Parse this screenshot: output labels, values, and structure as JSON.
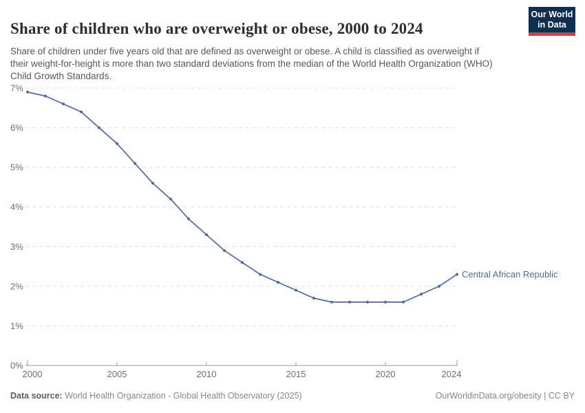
{
  "header": {
    "title": "Share of children who are overweight or obese, 2000 to 2024",
    "subtitle": "Share of children under five years old that are defined as overweight or obese. A child is classified as overweight if their weight-for-height is more than two standard deviations from the median of the World Health Organization (WHO) Child Growth Standards.",
    "logo": {
      "line1": "Our World",
      "line2": "in Data"
    }
  },
  "chart_data": {
    "type": "line",
    "title": "Share of children who are overweight or obese, 2000 to 2024",
    "xlabel": "",
    "ylabel": "",
    "unit": "%",
    "x": [
      2000,
      2001,
      2002,
      2003,
      2004,
      2005,
      2006,
      2007,
      2008,
      2009,
      2010,
      2011,
      2012,
      2013,
      2014,
      2015,
      2016,
      2017,
      2018,
      2019,
      2020,
      2021,
      2022,
      2023,
      2024
    ],
    "series": [
      {
        "name": "Central African Republic",
        "color": "#4c6aa2",
        "values": [
          6.9,
          6.8,
          6.6,
          6.4,
          6.0,
          5.6,
          5.1,
          4.6,
          4.2,
          3.7,
          3.3,
          2.9,
          2.6,
          2.3,
          2.1,
          1.9,
          1.7,
          1.6,
          1.6,
          1.6,
          1.6,
          1.6,
          1.8,
          2.0,
          2.3
        ]
      }
    ],
    "xlim": [
      2000,
      2024
    ],
    "ylim": [
      0,
      7
    ],
    "xticks": [
      {
        "value": 2000,
        "label": "2000"
      },
      {
        "value": 2005,
        "label": "2005"
      },
      {
        "value": 2010,
        "label": "2010"
      },
      {
        "value": 2015,
        "label": "2015"
      },
      {
        "value": 2020,
        "label": "2020"
      },
      {
        "value": 2024,
        "label": "2024"
      }
    ],
    "yticks": [
      {
        "value": 0,
        "label": "0%"
      },
      {
        "value": 1,
        "label": "1%"
      },
      {
        "value": 2,
        "label": "2%"
      },
      {
        "value": 3,
        "label": "3%"
      },
      {
        "value": 4,
        "label": "4%"
      },
      {
        "value": 5,
        "label": "5%"
      },
      {
        "value": 6,
        "label": "6%"
      },
      {
        "value": 7,
        "label": "7%"
      }
    ],
    "grid": "horizontal-dashed",
    "legend": "line-end-label"
  },
  "colors": {
    "line": "#4c6aa2",
    "grid": "#dedede",
    "axis": "#999999",
    "tick_text": "#6e6e6e",
    "logo_bg": "#0f2e52",
    "logo_red": "#dc3c34"
  },
  "footer": {
    "datasource_label": "Data source:",
    "datasource": " World Health Organization - Global Health Observatory (2025)",
    "right": "OurWorldinData.org/obesity | CC BY"
  }
}
